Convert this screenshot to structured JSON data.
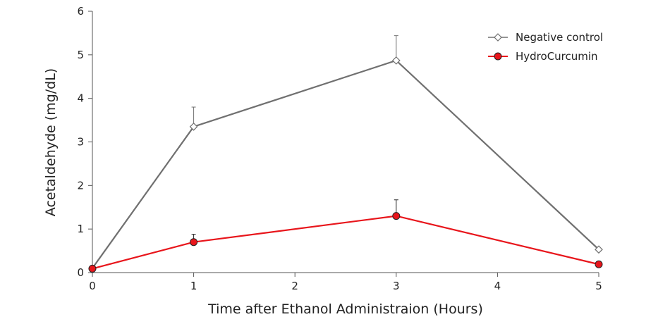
{
  "chart_data": {
    "type": "line",
    "xlabel": "Time after Ethanol Administraion (Hours)",
    "ylabel": "Acetaldehyde (mg/dL)",
    "xlim": [
      0,
      5
    ],
    "ylim": [
      0,
      6
    ],
    "xticks": [
      0,
      1,
      2,
      3,
      4,
      5
    ],
    "yticks": [
      0,
      1,
      2,
      3,
      4,
      5,
      6
    ],
    "grid": false,
    "legend_position": "top-right",
    "series": [
      {
        "name": "Negative control",
        "color": "#707070",
        "marker": "open-diamond",
        "x": [
          0,
          1,
          3,
          5
        ],
        "y": [
          0.1,
          3.35,
          4.87,
          0.53
        ],
        "error_upper": [
          0,
          0.45,
          0.57,
          0
        ]
      },
      {
        "name": "HydroCurcumin",
        "color": "#e8151b",
        "marker": "filled-circle",
        "x": [
          0,
          1,
          3,
          5
        ],
        "y": [
          0.09,
          0.7,
          1.3,
          0.19
        ],
        "error_upper": [
          0,
          0.18,
          0.37,
          0
        ]
      }
    ]
  }
}
